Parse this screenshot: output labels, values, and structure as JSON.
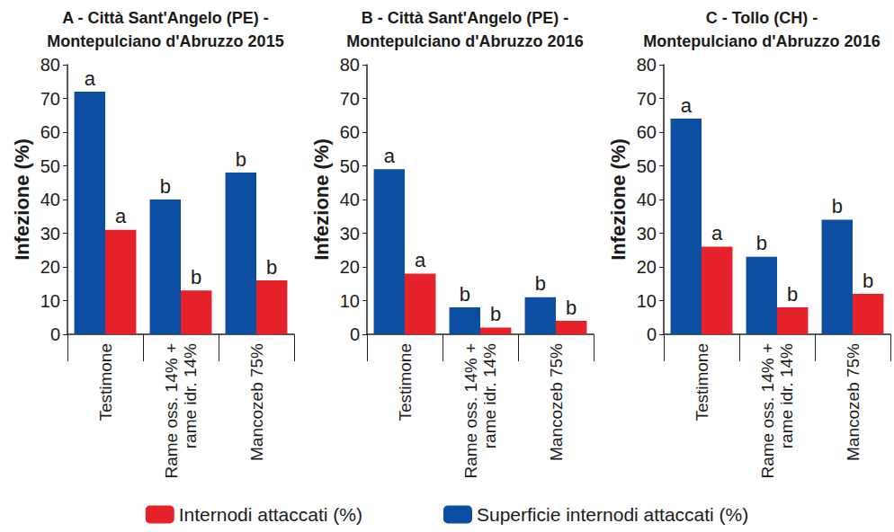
{
  "chart_data": [
    {
      "type": "bar",
      "title": "A - Città Sant'Angelo (PE) -\nMontepulciano d'Abruzzo 2015",
      "y_label": "Infezione (%)",
      "categories": [
        "Testimone",
        "Rame oss. 14% +\nrame idr. 14%",
        "Mancozeb 75%"
      ],
      "series": [
        {
          "name": "Superficie internodi attaccati (%)",
          "color": "#0b4ea2",
          "values": [
            72,
            40,
            48
          ],
          "annotations": [
            "a",
            "b",
            "b"
          ]
        },
        {
          "name": "Internodi attaccati (%)",
          "color": "#e52229",
          "values": [
            31,
            13,
            16
          ],
          "annotations": [
            "a",
            "b",
            "b"
          ]
        }
      ],
      "ylim": [
        0,
        80
      ],
      "yticks": [
        0,
        10,
        20,
        30,
        40,
        50,
        60,
        70,
        80
      ],
      "grid": false,
      "legend": "bottom"
    },
    {
      "type": "bar",
      "title": "B - Città Sant'Angelo (PE) -\nMontepulciano d'Abruzzo 2016",
      "y_label": "Infezione (%)",
      "categories": [
        "Testimone",
        "Rame oss. 14% +\nrame idr. 14%",
        "Mancozeb 75%"
      ],
      "series": [
        {
          "name": "Superficie internodi attaccati (%)",
          "color": "#0b4ea2",
          "values": [
            49,
            8,
            11
          ],
          "annotations": [
            "a",
            "b",
            "b"
          ]
        },
        {
          "name": "Internodi attaccati (%)",
          "color": "#e52229",
          "values": [
            18,
            2,
            4
          ],
          "annotations": [
            "a",
            "b",
            "b"
          ]
        }
      ],
      "ylim": [
        0,
        80
      ],
      "yticks": [
        0,
        10,
        20,
        30,
        40,
        50,
        60,
        70,
        80
      ],
      "grid": false,
      "legend": "bottom"
    },
    {
      "type": "bar",
      "title": "C - Tollo (CH) -\nMontepulciano d'Abruzzo 2016",
      "y_label": "Infezione (%)",
      "categories": [
        "Testimone",
        "Rame oss. 14% +\nrame idr. 14%",
        "Mancozeb 75%"
      ],
      "series": [
        {
          "name": "Superficie internodi attaccati (%)",
          "color": "#0b4ea2",
          "values": [
            64,
            23,
            34
          ],
          "annotations": [
            "a",
            "b",
            "b"
          ]
        },
        {
          "name": "Internodi attaccati (%)",
          "color": "#e52229",
          "values": [
            26,
            8,
            12
          ],
          "annotations": [
            "a",
            "b",
            "b"
          ]
        }
      ],
      "ylim": [
        0,
        80
      ],
      "yticks": [
        0,
        10,
        20,
        30,
        40,
        50,
        60,
        70,
        80
      ],
      "grid": false,
      "legend": "bottom"
    }
  ]
}
